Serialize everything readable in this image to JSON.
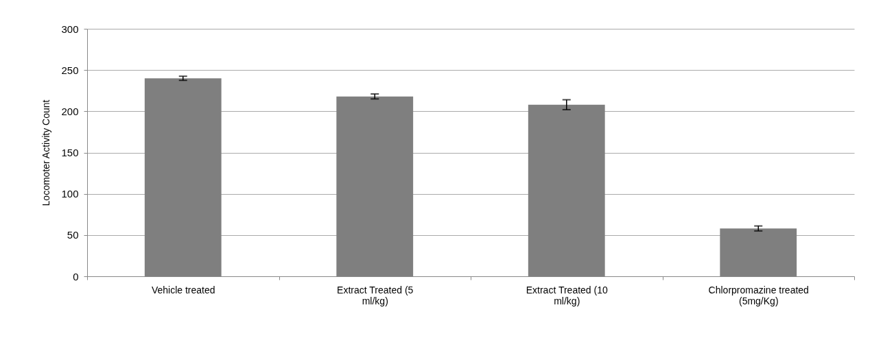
{
  "chart_data": {
    "type": "bar",
    "ylabel": "Locomoter Activity Count",
    "categories": [
      "Vehicle treated",
      "Extract Treated (5 ml/kg)",
      "Extract Treated (10 ml/kg)",
      "Chlorpromazine treated (5mg/Kg)"
    ],
    "values": [
      240,
      218,
      208,
      58
    ],
    "errors": [
      2.5,
      3,
      6,
      3
    ],
    "color": "#7f7f7f",
    "ylim": [
      0,
      300
    ],
    "yticks": [
      0,
      50,
      100,
      150,
      200,
      250,
      300
    ],
    "grid": "y"
  }
}
